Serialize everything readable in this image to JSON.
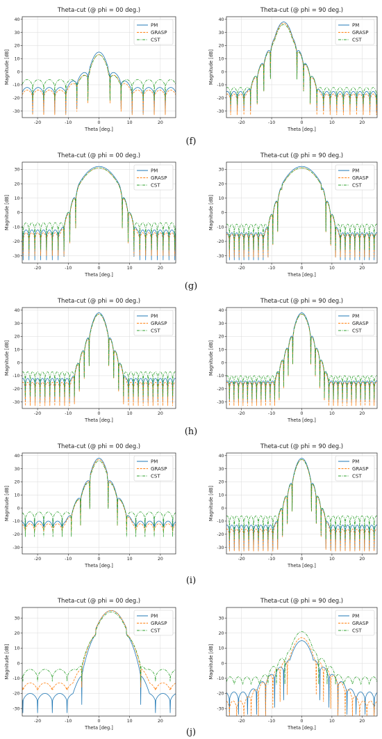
{
  "colors": {
    "PM": "#1f77b4",
    "GRASP": "#ff7f0e",
    "CST": "#2ca02c",
    "grid": "#d9d9d9"
  },
  "row_labels": [
    "(f)",
    "(g)",
    "(h)",
    "(i)",
    "(j)"
  ],
  "chart_data": [
    {
      "type": "line",
      "row": "f",
      "title": "Theta-cut (@ phi = 00 deg.)",
      "xlabel": "Theta [deg.]",
      "ylabel": "Magnitude [dB]",
      "xlim": [
        -25,
        25
      ],
      "ylim": [
        -35,
        42
      ],
      "xticks": [
        -20,
        -10,
        0,
        10,
        20
      ],
      "yticks": [
        -30,
        -20,
        -10,
        0,
        10,
        20,
        30,
        40
      ],
      "grid": true,
      "legend": "top-right",
      "series": [
        {
          "name": "PM",
          "style": "solid",
          "peak_x": 0,
          "peak": 15,
          "lobes": 3.6,
          "floor": -12,
          "decay": 0.55,
          "nulls": -32
        },
        {
          "name": "GRASP",
          "style": "dashed",
          "peak_x": 0,
          "peak": 13,
          "lobes": 3.6,
          "floor": -14,
          "decay": 0.55,
          "nulls": -33
        },
        {
          "name": "CST",
          "style": "dashdot",
          "peak_x": 0,
          "peak": 13,
          "lobes": 3.6,
          "floor": -6,
          "decay": 0.6,
          "nulls": -22
        }
      ]
    },
    {
      "type": "line",
      "row": "f",
      "title": "Theta-cut (@ phi = 90 deg.)",
      "xlabel": "Theta [deg.]",
      "ylabel": "Magnitude [dB]",
      "xlim": [
        -25,
        25
      ],
      "ylim": [
        -35,
        42
      ],
      "xticks": [
        -20,
        -10,
        0,
        10,
        20
      ],
      "yticks": [
        -30,
        -20,
        -10,
        0,
        10,
        20,
        30,
        40
      ],
      "grid": true,
      "legend": "top-right",
      "series": [
        {
          "name": "PM",
          "style": "solid",
          "peak_x": -6,
          "peak": 38,
          "beam": 3.0,
          "lobes": 2.2,
          "floor": -15,
          "decay": 1.4,
          "nulls": -30
        },
        {
          "name": "GRASP",
          "style": "dashed",
          "peak_x": -6,
          "peak": 37,
          "beam": 3.0,
          "lobes": 2.2,
          "floor": -17,
          "decay": 1.4,
          "nulls": -33
        },
        {
          "name": "CST",
          "style": "dashdot",
          "peak_x": -6,
          "peak": 36,
          "beam": 3.0,
          "lobes": 2.2,
          "floor": -12,
          "decay": 1.3,
          "nulls": -25
        }
      ]
    },
    {
      "type": "line",
      "row": "g",
      "title": "Theta-cut (@ phi = 00 deg.)",
      "xlabel": "Theta [deg.]",
      "ylabel": "Magnitude [dB]",
      "xlim": [
        -25,
        25
      ],
      "ylim": [
        -35,
        35
      ],
      "xticks": [
        -20,
        -10,
        0,
        10,
        20
      ],
      "yticks": [
        -30,
        -20,
        -10,
        0,
        10,
        20,
        30
      ],
      "grid": true,
      "legend": "top-right",
      "series": [
        {
          "name": "PM",
          "style": "solid",
          "peak_x": 0,
          "peak": 32,
          "beam": 6.5,
          "lobes": 1.9,
          "floor": -12,
          "decay": 1.7,
          "nulls": -33
        },
        {
          "name": "GRASP",
          "style": "dashed",
          "peak_x": 0,
          "peak": 31,
          "beam": 6.5,
          "lobes": 1.9,
          "floor": -14,
          "decay": 1.7,
          "nulls": -30
        },
        {
          "name": "CST",
          "style": "dashdot",
          "peak_x": 0,
          "peak": 31,
          "beam": 6.5,
          "lobes": 1.9,
          "floor": -7,
          "decay": 1.6,
          "nulls": -26
        }
      ]
    },
    {
      "type": "line",
      "row": "g",
      "title": "Theta-cut (@ phi = 90 deg.)",
      "xlabel": "Theta [deg.]",
      "ylabel": "Magnitude [dB]",
      "xlim": [
        -25,
        25
      ],
      "ylim": [
        -35,
        35
      ],
      "xticks": [
        -20,
        -10,
        0,
        10,
        20
      ],
      "yticks": [
        -30,
        -20,
        -10,
        0,
        10,
        20,
        30
      ],
      "grid": true,
      "legend": "top-right",
      "series": [
        {
          "name": "PM",
          "style": "solid",
          "peak_x": 0,
          "peak": 32,
          "beam": 6.5,
          "lobes": 1.6,
          "floor": -14,
          "decay": 1.8,
          "nulls": -33
        },
        {
          "name": "GRASP",
          "style": "dashed",
          "peak_x": 0,
          "peak": 31,
          "beam": 6.5,
          "lobes": 1.6,
          "floor": -15,
          "decay": 1.8,
          "nulls": -31
        },
        {
          "name": "CST",
          "style": "dashdot",
          "peak_x": 0,
          "peak": 31,
          "beam": 6.5,
          "lobes": 1.6,
          "floor": -8,
          "decay": 1.7,
          "nulls": -26
        }
      ]
    },
    {
      "type": "line",
      "row": "h",
      "title": "Theta-cut (@ phi = 00 deg.)",
      "xlabel": "Theta [deg.]",
      "ylabel": "Magnitude [dB]",
      "xlim": [
        -25,
        25
      ],
      "ylim": [
        -35,
        42
      ],
      "xticks": [
        -20,
        -10,
        0,
        10,
        20
      ],
      "yticks": [
        -30,
        -20,
        -10,
        0,
        10,
        20,
        30,
        40
      ],
      "grid": true,
      "legend": "top-right",
      "series": [
        {
          "name": "PM",
          "style": "solid",
          "peak_x": 0,
          "peak": 38,
          "beam": 2.6,
          "lobes": 1.6,
          "floor": -12,
          "decay": 1.9,
          "nulls": -30
        },
        {
          "name": "GRASP",
          "style": "dashed",
          "peak_x": 0,
          "peak": 37,
          "beam": 2.6,
          "lobes": 1.6,
          "floor": -15,
          "decay": 1.9,
          "nulls": -33
        },
        {
          "name": "CST",
          "style": "dashdot",
          "peak_x": 0,
          "peak": 37,
          "beam": 2.6,
          "lobes": 1.6,
          "floor": -7,
          "decay": 1.8,
          "nulls": -26
        }
      ]
    },
    {
      "type": "line",
      "row": "h",
      "title": "Theta-cut (@ phi = 90 deg.)",
      "xlabel": "Theta [deg.]",
      "ylabel": "Magnitude [dB]",
      "xlim": [
        -25,
        25
      ],
      "ylim": [
        -35,
        42
      ],
      "xticks": [
        -20,
        -10,
        0,
        10,
        20
      ],
      "yticks": [
        -30,
        -20,
        -10,
        0,
        10,
        20,
        30,
        40
      ],
      "grid": true,
      "legend": "top-right",
      "series": [
        {
          "name": "PM",
          "style": "solid",
          "peak_x": 0,
          "peak": 38,
          "beam": 2.6,
          "lobes": 1.5,
          "floor": -14,
          "decay": 1.9,
          "nulls": -30
        },
        {
          "name": "GRASP",
          "style": "dashed",
          "peak_x": 0,
          "peak": 37,
          "beam": 2.6,
          "lobes": 1.5,
          "floor": -15,
          "decay": 1.9,
          "nulls": -33
        },
        {
          "name": "CST",
          "style": "dashdot",
          "peak_x": 0,
          "peak": 37,
          "beam": 2.6,
          "lobes": 1.5,
          "floor": -10,
          "decay": 1.8,
          "nulls": -28
        }
      ]
    },
    {
      "type": "line",
      "row": "i",
      "title": "Theta-cut (@ phi = 00 deg.)",
      "xlabel": "Theta [deg.]",
      "ylabel": "Magnitude [dB]",
      "xlim": [
        -25,
        25
      ],
      "ylim": [
        -35,
        42
      ],
      "xticks": [
        -20,
        -10,
        0,
        10,
        20
      ],
      "yticks": [
        -30,
        -20,
        -10,
        0,
        10,
        20,
        30,
        40
      ],
      "grid": true,
      "legend": "top-right",
      "series": [
        {
          "name": "PM",
          "style": "solid",
          "peak_x": 0,
          "peak": 38,
          "beam": 2.8,
          "lobes": 3.0,
          "floor": -10,
          "decay": 1.4,
          "nulls": -8
        },
        {
          "name": "GRASP",
          "style": "dashed",
          "peak_x": 0,
          "peak": 37,
          "beam": 2.8,
          "lobes": 3.0,
          "floor": -12,
          "decay": 1.4,
          "nulls": -18
        },
        {
          "name": "CST",
          "style": "dashdot",
          "peak_x": 0,
          "peak": 36,
          "beam": 2.8,
          "lobes": 3.0,
          "floor": -3,
          "decay": 1.3,
          "nulls": -22
        }
      ]
    },
    {
      "type": "line",
      "row": "i",
      "title": "Theta-cut (@ phi = 90 deg.)",
      "xlabel": "Theta [deg.]",
      "ylabel": "Magnitude [dB]",
      "xlim": [
        -25,
        25
      ],
      "ylim": [
        -35,
        42
      ],
      "xticks": [
        -20,
        -10,
        0,
        10,
        20
      ],
      "yticks": [
        -30,
        -20,
        -10,
        0,
        10,
        20,
        30,
        40
      ],
      "grid": true,
      "legend": "top-right",
      "series": [
        {
          "name": "PM",
          "style": "solid",
          "peak_x": 0,
          "peak": 38,
          "beam": 2.6,
          "lobes": 1.6,
          "floor": -13,
          "decay": 1.9,
          "nulls": -32
        },
        {
          "name": "GRASP",
          "style": "dashed",
          "peak_x": 0,
          "peak": 37,
          "beam": 2.6,
          "lobes": 1.6,
          "floor": -16,
          "decay": 1.9,
          "nulls": -33
        },
        {
          "name": "CST",
          "style": "dashdot",
          "peak_x": 0,
          "peak": 37,
          "beam": 2.6,
          "lobes": 1.6,
          "floor": -6,
          "decay": 1.8,
          "nulls": -24
        }
      ]
    },
    {
      "type": "line",
      "row": "j",
      "title": "Theta-cut (@ phi = 00 deg.)",
      "xlabel": "Theta [deg.]",
      "ylabel": "Magnitude [dB]",
      "xlim": [
        -25,
        25
      ],
      "ylim": [
        -35,
        37
      ],
      "xticks": [
        -20,
        -10,
        0,
        10,
        20
      ],
      "yticks": [
        -30,
        -20,
        -10,
        0,
        10,
        20,
        30
      ],
      "grid": true,
      "legend": "top-right",
      "series": [
        {
          "name": "PM",
          "style": "solid",
          "peak_x": 4,
          "peak": 35,
          "beam": 5.0,
          "lobes": 4.8,
          "floor": -20,
          "decay": 1.8,
          "nulls": -33
        },
        {
          "name": "GRASP",
          "style": "dashed",
          "peak_x": 4,
          "peak": 35,
          "beam": 5.0,
          "lobes": 4.8,
          "floor": -13,
          "decay": 1.5,
          "nulls": -16
        },
        {
          "name": "CST",
          "style": "dashdot",
          "peak_x": 4,
          "peak": 34,
          "beam": 5.0,
          "lobes": 4.8,
          "floor": -4,
          "decay": 1.3,
          "nulls": -12
        }
      ]
    },
    {
      "type": "line",
      "row": "j",
      "title": "Theta-cut (@ phi = 90 deg.)",
      "xlabel": "Theta [deg.]",
      "ylabel": "Magnitude [dB]",
      "xlim": [
        -25,
        25
      ],
      "ylim": [
        -35,
        37
      ],
      "xticks": [
        -20,
        -10,
        0,
        10,
        20
      ],
      "yticks": [
        -30,
        -20,
        -10,
        0,
        10,
        20,
        30
      ],
      "grid": true,
      "legend": "top-right",
      "series": [
        {
          "name": "PM",
          "style": "solid",
          "peak_x": 0,
          "peak": 15,
          "beam": 3.8,
          "lobes": 3.0,
          "floor": -19,
          "decay": 0.5,
          "nulls": -34
        },
        {
          "name": "GRASP",
          "style": "dashed",
          "peak_x": 0,
          "peak": 17,
          "beam": 3.8,
          "lobes": 2.4,
          "floor": -25,
          "decay": 0.6,
          "nulls": -35
        },
        {
          "name": "CST",
          "style": "dashdot",
          "peak_x": 0,
          "peak": 21,
          "beam": 3.8,
          "lobes": 2.8,
          "floor": -9,
          "decay": 0.6,
          "nulls": -14
        }
      ]
    }
  ]
}
